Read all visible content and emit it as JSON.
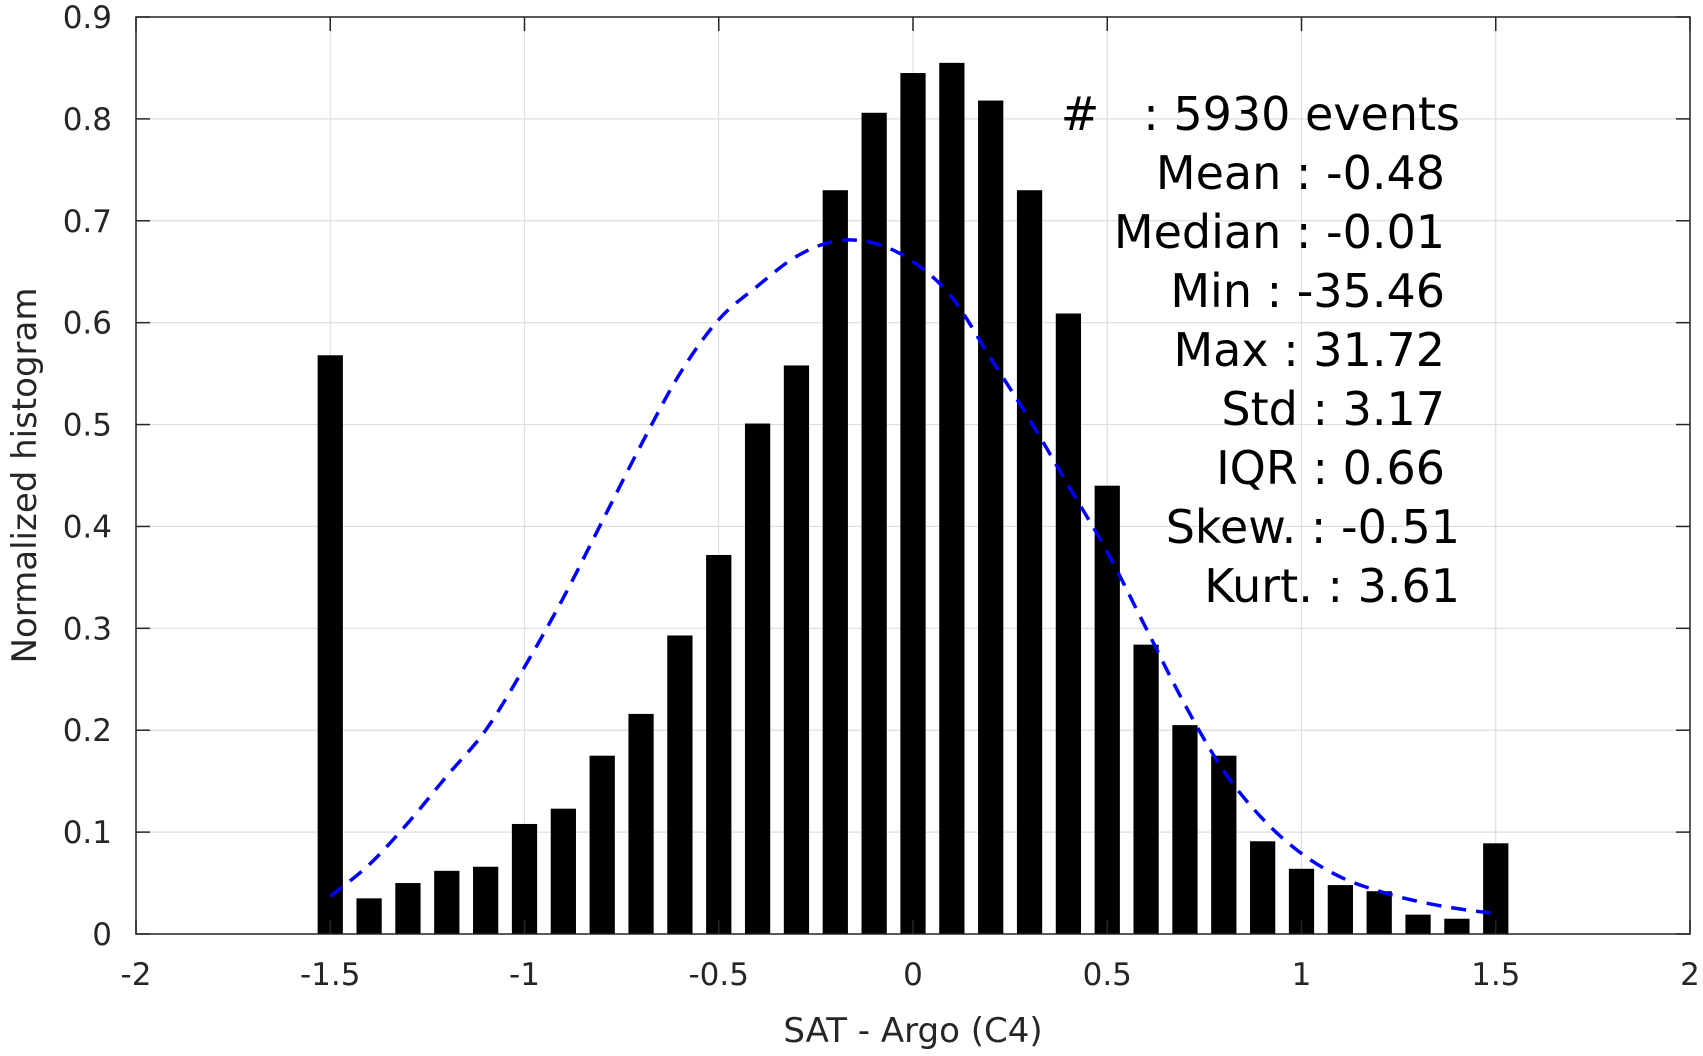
{
  "chart_data": {
    "type": "bar",
    "xlabel": "SAT - Argo (C4)",
    "ylabel": "Normalized histogram",
    "xlim": [
      -2,
      2
    ],
    "ylim": [
      0,
      0.9
    ],
    "xticks": [
      "-2",
      "-1.5",
      "-1",
      "-0.5",
      "0",
      "0.5",
      "1",
      "1.5",
      "2"
    ],
    "yticks": [
      "0",
      "0.1",
      "0.2",
      "0.3",
      "0.4",
      "0.5",
      "0.6",
      "0.7",
      "0.8",
      "0.9"
    ],
    "grid": true,
    "bar_width": 0.065,
    "bars": {
      "x": [
        -1.5,
        -1.4,
        -1.3,
        -1.2,
        -1.1,
        -1.0,
        -0.9,
        -0.8,
        -0.7,
        -0.6,
        -0.5,
        -0.4,
        -0.3,
        -0.2,
        -0.1,
        0.0,
        0.1,
        0.2,
        0.3,
        0.4,
        0.5,
        0.6,
        0.7,
        0.8,
        0.9,
        1.0,
        1.1,
        1.2,
        1.3,
        1.4,
        1.5
      ],
      "values": [
        0.568,
        0.035,
        0.05,
        0.062,
        0.066,
        0.108,
        0.123,
        0.175,
        0.216,
        0.293,
        0.372,
        0.501,
        0.558,
        0.73,
        0.806,
        0.845,
        0.855,
        0.818,
        0.73,
        0.609,
        0.44,
        0.284,
        0.205,
        0.175,
        0.091,
        0.064,
        0.048,
        0.042,
        0.019,
        0.015,
        0.089
      ],
      "color": "#000000"
    },
    "fit_curve": {
      "style": "dashed",
      "color": "#0000ff",
      "x": [
        -1.5,
        -1.4,
        -1.3,
        -1.2,
        -1.1,
        -1.0,
        -0.9,
        -0.8,
        -0.7,
        -0.6,
        -0.5,
        -0.4,
        -0.3,
        -0.2,
        -0.1,
        0.0,
        0.1,
        0.2,
        0.3,
        0.4,
        0.5,
        0.6,
        0.7,
        0.8,
        0.9,
        1.0,
        1.1,
        1.2,
        1.3,
        1.4,
        1.5
      ],
      "y": [
        0.037,
        0.068,
        0.109,
        0.155,
        0.2,
        0.262,
        0.33,
        0.405,
        0.48,
        0.55,
        0.603,
        0.636,
        0.665,
        0.68,
        0.678,
        0.66,
        0.625,
        0.565,
        0.505,
        0.44,
        0.375,
        0.3,
        0.225,
        0.16,
        0.113,
        0.079,
        0.056,
        0.042,
        0.032,
        0.025,
        0.02
      ]
    },
    "stats": [
      "#   : 5930 events",
      "Mean : -0.48",
      "Median : -0.01",
      "Min : -35.46",
      "Max : 31.72",
      "Std : 3.17",
      "IQR : 0.66",
      "Skew. : -0.51",
      "Kurt. : 3.61"
    ]
  }
}
